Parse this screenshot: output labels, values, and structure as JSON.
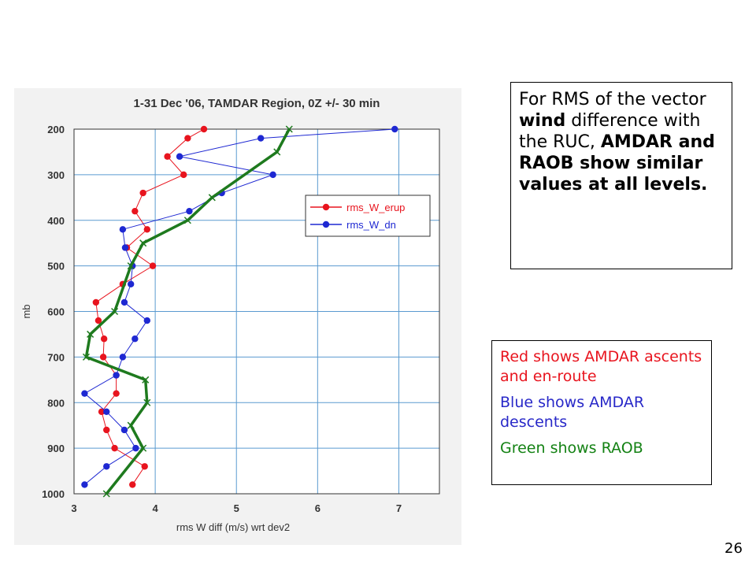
{
  "chart_data": {
    "type": "line",
    "title": "1-31 Dec '06, TAMDAR Region, 0Z +/- 30 min",
    "xlabel": "rms W diff (m/s) wrt dev2",
    "ylabel": "mb",
    "xlim": [
      3,
      7.5
    ],
    "ylim": [
      1000,
      200
    ],
    "x_ticks": [
      3,
      4,
      5,
      6,
      7
    ],
    "y_ticks": [
      200,
      300,
      400,
      500,
      600,
      700,
      800,
      900,
      1000
    ],
    "grid": true,
    "legend_position": "top-right",
    "series": [
      {
        "name": "rms_W_erup",
        "color": "#e8141e",
        "marker": "dot",
        "points": [
          [
            4.6,
            200
          ],
          [
            4.4,
            220
          ],
          [
            4.15,
            260
          ],
          [
            4.35,
            300
          ],
          [
            3.85,
            340
          ],
          [
            3.75,
            380
          ],
          [
            3.9,
            420
          ],
          [
            3.65,
            460
          ],
          [
            3.97,
            500
          ],
          [
            3.6,
            540
          ],
          [
            3.27,
            580
          ],
          [
            3.3,
            620
          ],
          [
            3.37,
            660
          ],
          [
            3.36,
            700
          ],
          [
            3.52,
            740
          ],
          [
            3.52,
            780
          ],
          [
            3.34,
            820
          ],
          [
            3.4,
            860
          ],
          [
            3.5,
            900
          ],
          [
            3.87,
            940
          ],
          [
            3.72,
            980
          ]
        ]
      },
      {
        "name": "rms_W_dn",
        "color": "#1e28d2",
        "marker": "dot",
        "points": [
          [
            6.95,
            200
          ],
          [
            5.3,
            220
          ],
          [
            4.3,
            260
          ],
          [
            5.45,
            300
          ],
          [
            4.82,
            340
          ],
          [
            4.42,
            380
          ],
          [
            3.6,
            420
          ],
          [
            3.63,
            460
          ],
          [
            3.72,
            500
          ],
          [
            3.7,
            540
          ],
          [
            3.62,
            580
          ],
          [
            3.9,
            620
          ],
          [
            3.75,
            660
          ],
          [
            3.6,
            700
          ],
          [
            3.52,
            740
          ],
          [
            3.13,
            780
          ],
          [
            3.4,
            820
          ],
          [
            3.62,
            860
          ],
          [
            3.76,
            900
          ],
          [
            3.4,
            940
          ],
          [
            3.13,
            980
          ]
        ]
      },
      {
        "name": "",
        "color": "#1e7a1e",
        "marker": "x",
        "points": [
          [
            5.65,
            200
          ],
          [
            5.5,
            250
          ],
          [
            4.7,
            350
          ],
          [
            4.4,
            400
          ],
          [
            3.85,
            450
          ],
          [
            3.7,
            500
          ],
          [
            3.5,
            600
          ],
          [
            3.2,
            650
          ],
          [
            3.15,
            700
          ],
          [
            3.88,
            750
          ],
          [
            3.9,
            800
          ],
          [
            3.7,
            850
          ],
          [
            3.85,
            900
          ],
          [
            3.4,
            1000
          ]
        ]
      }
    ]
  },
  "note": {
    "t1": "For RMS of the vector ",
    "b1": "wind",
    "t2": " difference with the RUC, ",
    "b2": "AMDAR and RAOB show similar values at all levels."
  },
  "legend_text": {
    "red": "Red shows AMDAR ascents and en-route",
    "red_color": "#e8141e",
    "blue": "Blue shows AMDAR descents",
    "blue_color": "#2828c8",
    "green": "Green shows RAOB",
    "green_color": "#148214"
  },
  "page_number": "26"
}
